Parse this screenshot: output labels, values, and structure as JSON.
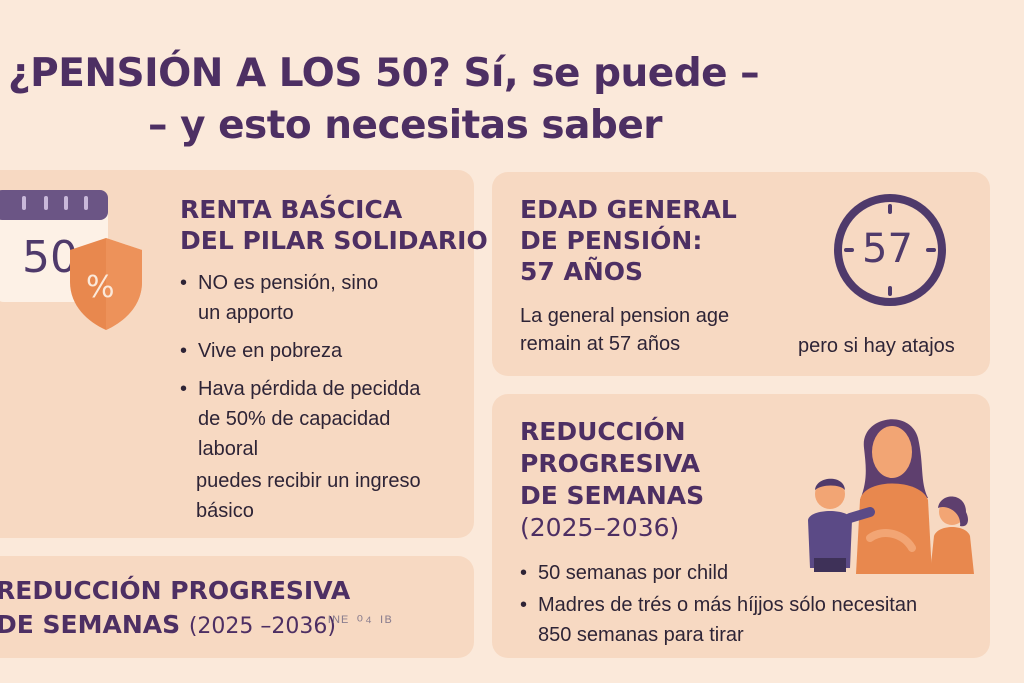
{
  "title": {
    "line1": "¿PENSIÓN A LOS 50? Sí, se puede –",
    "line2": "– y esto necesitas saber"
  },
  "card_renta": {
    "heading_line1": "RENTA BAŚCICA",
    "heading_line2": "DEL PILAR SOLIDARIO",
    "calendar_value": "50",
    "shield_symbol": "%",
    "bullets": [
      {
        "line1": "NO es pensión, sino",
        "line2": "un apporto"
      },
      {
        "line1": "Vive en pobreza",
        "line2": ""
      },
      {
        "line1": "Hava pérdida de pecidda",
        "line2": "de 50% de capacidad",
        "line3": "laboral"
      }
    ],
    "footer_line1": "puedes recibir un ingreso",
    "footer_line2": "básico"
  },
  "card_edad": {
    "heading_line1": "EDAD GENERAL",
    "heading_line2": "DE PENSIÓN:",
    "heading_line3": "57 AÑOS",
    "body_line1": "La general pension age",
    "body_line2": "remain at 57 años",
    "clock_value": "57",
    "caption": "pero si hay atajos"
  },
  "card_reduccion": {
    "heading_line1": "REDUCCIÓN",
    "heading_line2": "PROGRESIVA",
    "heading_line3": "DE SEMANAS",
    "heading_line4": "(2025–2036)",
    "bullets": [
      {
        "line1": "50 semanas por child",
        "line2": ""
      },
      {
        "line1": "Madres de trés o más híjjos sólo necesitan",
        "line2": "850 semanas para tirar"
      }
    ]
  },
  "card_bottom": {
    "heading_line1": "REDUCCIÓN PROGRESIVA",
    "heading_line2": "DE SEMANAS",
    "years": "(2025 –2036)",
    "trailing": "ᴵᴺᴱ ⁰⁴ ᴵᴮ"
  },
  "colors": {
    "background": "#fbe9da",
    "card": "#f7d9c2",
    "heading_purple": "#4d2f63",
    "accent_orange": "#e8884e",
    "icon_purple": "#4f3a6b"
  },
  "icons": [
    "calendar-icon",
    "shield-percent-icon",
    "clock-icon",
    "family-illustration"
  ]
}
